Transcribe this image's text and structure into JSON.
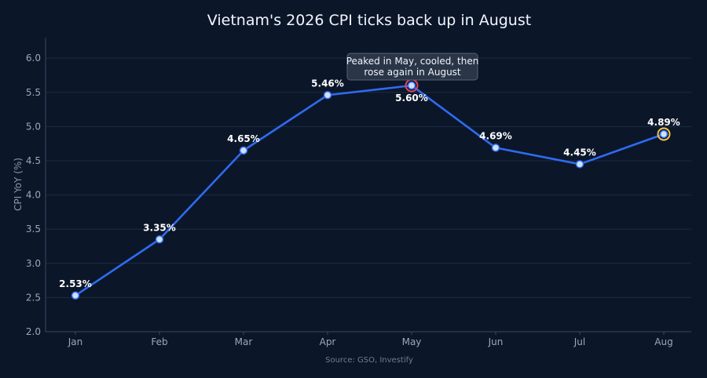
{
  "chart_data": {
    "type": "line",
    "title": "Vietnam's 2026 CPI ticks back up in August",
    "xlabel": "",
    "ylabel": "CPI YoY (%)",
    "categories": [
      "Jan",
      "Feb",
      "Mar",
      "Apr",
      "May",
      "Jun",
      "Jul",
      "Aug"
    ],
    "series": [
      {
        "values": [
          2.53,
          3.35,
          4.65,
          5.46,
          5.6,
          4.69,
          4.45,
          4.89
        ],
        "value_labels": [
          "2.53%",
          "3.35%",
          "4.65%",
          "5.46%",
          "5.60%",
          "4.69%",
          "4.45%",
          "4.89%"
        ]
      }
    ],
    "ylim": [
      2.0,
      6.3
    ],
    "yticks": [
      "2.0",
      "2.5",
      "3.0",
      "3.5",
      "4.0",
      "4.5",
      "5.0",
      "5.5",
      "6.0"
    ],
    "grid": true,
    "annotation": {
      "lines": [
        "Peaked in May, cooled, then",
        "rose again in August"
      ],
      "target": "May"
    },
    "highlights": {
      "peak": "May",
      "latest": "Aug"
    },
    "source": "Source: GSO, Investify",
    "colors": {
      "background": "#0b1629",
      "line": "#2f6bf0",
      "point_fill": "#cfe0ff",
      "peak_ring": "#e0435c",
      "latest_ring": "#f5c242",
      "grid": "#1c2a42",
      "axis": "#3a4a63"
    }
  }
}
